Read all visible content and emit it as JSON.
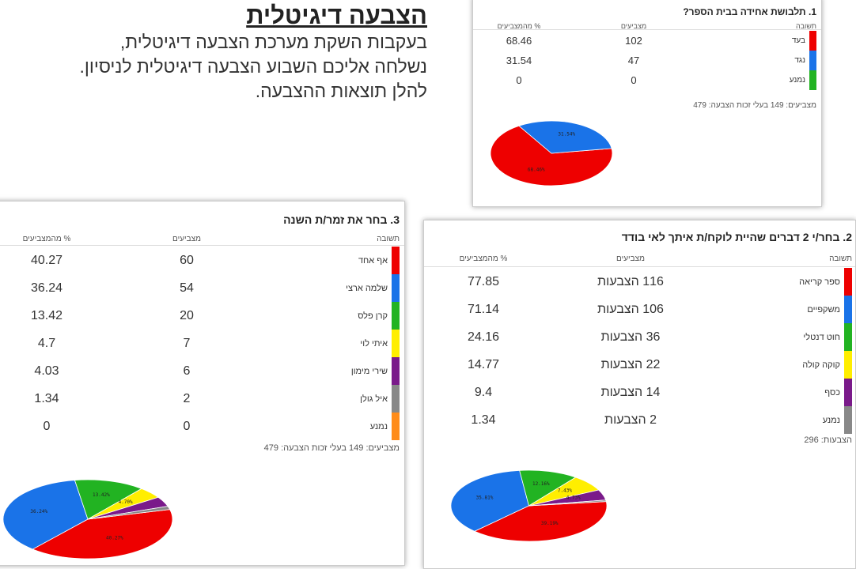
{
  "intro": {
    "title": "הצבעה דיגיטלית",
    "lines": [
      "בעקבות השקת מערכת הצבעה דיגיטלית,",
      "נשלחה אליכם השבוע הצבעה דיגיטלית לניסיון.",
      "להלן תוצאות ההצבעה."
    ]
  },
  "q1": {
    "title": "1. תלבושת אחידה בבית הספר?",
    "col_answer": "תשובה",
    "col_votes": "מצביעים",
    "col_pct": "% מהמצביעים",
    "rows": [
      {
        "answer": "בעד",
        "votes": "102",
        "pct": "68.46",
        "color": "#ee0000"
      },
      {
        "answer": "נגד",
        "votes": "47",
        "pct": "31.54",
        "color": "#1a73e8"
      },
      {
        "answer": "נמנע",
        "votes": "0",
        "pct": "0",
        "color": "#22b322"
      }
    ],
    "footer": "מצביעים: 149   בעלי זכות הצבעה: 479",
    "pie_labels": [
      "68.46%",
      "31.54%"
    ]
  },
  "q3": {
    "title": "3. בחר את זמר/ת השנה",
    "col_answer": "תשובה",
    "col_votes": "מצביעים",
    "col_pct": "% מהמצביעים",
    "rows": [
      {
        "answer": "אף אחד",
        "votes": "60",
        "pct": "40.27",
        "color": "#ee0000"
      },
      {
        "answer": "שלמה ארצי",
        "votes": "54",
        "pct": "36.24",
        "color": "#1a73e8"
      },
      {
        "answer": "קרן פלס",
        "votes": "20",
        "pct": "13.42",
        "color": "#22b322"
      },
      {
        "answer": "איתי לוי",
        "votes": "7",
        "pct": "4.7",
        "color": "#ffee00"
      },
      {
        "answer": "שירי מימון",
        "votes": "6",
        "pct": "4.03",
        "color": "#7a1a8a"
      },
      {
        "answer": "איל גולן",
        "votes": "2",
        "pct": "1.34",
        "color": "#888888"
      },
      {
        "answer": "נמנע",
        "votes": "0",
        "pct": "0",
        "color": "#ff8c1a"
      }
    ],
    "footer": "מצביעים: 149   בעלי זכות הצבעה: 479",
    "pie_labels": [
      "40.27%",
      "36.24%",
      "13.42%",
      "4.70%"
    ]
  },
  "q2": {
    "title": "2. בחר/י 2 דברים שהיית לוקח/ת איתך לאי בודד",
    "col_answer": "תשובה",
    "col_votes": "מצביעים",
    "col_pct": "% מהמצביעים",
    "rows": [
      {
        "answer": "ספר קריאה",
        "votes": "116 הצבעות",
        "pct": "77.85",
        "color": "#ee0000"
      },
      {
        "answer": "משקפיים",
        "votes": "106 הצבעות",
        "pct": "71.14",
        "color": "#1a73e8"
      },
      {
        "answer": "חוט דנטלי",
        "votes": "36 הצבעות",
        "pct": "24.16",
        "color": "#22b322"
      },
      {
        "answer": "קוקה קולה",
        "votes": "22 הצבעות",
        "pct": "14.77",
        "color": "#ffee00"
      },
      {
        "answer": "כסף",
        "votes": "14 הצבעות",
        "pct": "9.4",
        "color": "#7a1a8a"
      },
      {
        "answer": "נמנע",
        "votes": "2 הצבעות",
        "pct": "1.34",
        "color": "#888888"
      }
    ],
    "footer": "הצבעות: 296",
    "pie_labels": [
      "39.19%",
      "35.81%",
      "12.16%",
      "7.43%",
      "4.73%"
    ]
  }
}
